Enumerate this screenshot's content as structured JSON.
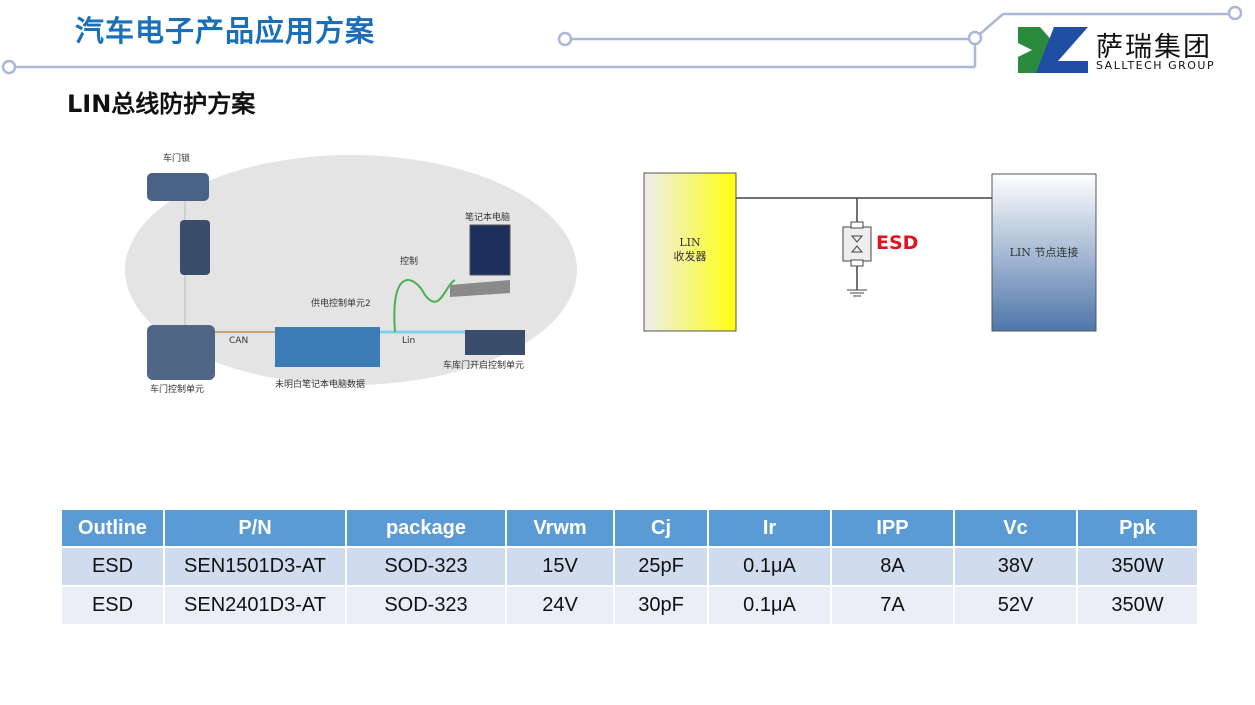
{
  "header": {
    "title": "汽车电子产品应用方案",
    "logo_cn": "萨瑞集团",
    "logo_en": "SALLTECH GROUP"
  },
  "subtitle": "LIN总线防护方案",
  "illustration": {
    "labels": {
      "door_lock": "车门锁",
      "laptop": "笔记本电脑",
      "control": "控制",
      "power_unit": "供电控制单元2",
      "can": "CAN",
      "lin": "Lin",
      "garage_unit": "车库门开启控制单元",
      "door_unit": "车门控制单元",
      "unknown": "未明白笔记本电脑数据"
    }
  },
  "circuit": {
    "transceiver_line1": "LIN",
    "transceiver_line2": "收发器",
    "esd_label": "ESD",
    "node": "LIN 节点连接",
    "esd_color": "#e0141e"
  },
  "table": {
    "headers": [
      "Outline",
      "P/N",
      "package",
      "Vrwm",
      "Cj",
      "Ir",
      "IPP",
      "Vc",
      "Ppk"
    ],
    "rows": [
      [
        "ESD",
        "SEN1501D3-AT",
        "SOD-323",
        "15V",
        "25pF",
        "0.1μA",
        "8A",
        "38V",
        "350W"
      ],
      [
        "ESD",
        "SEN2401D3-AT",
        "SOD-323",
        "24V",
        "30pF",
        "0.1μA",
        "7A",
        "52V",
        "350W"
      ]
    ]
  },
  "colors": {
    "title": "#1a6fb8",
    "header_bg": "#5b9bd5",
    "line": "#a9b8d6"
  }
}
